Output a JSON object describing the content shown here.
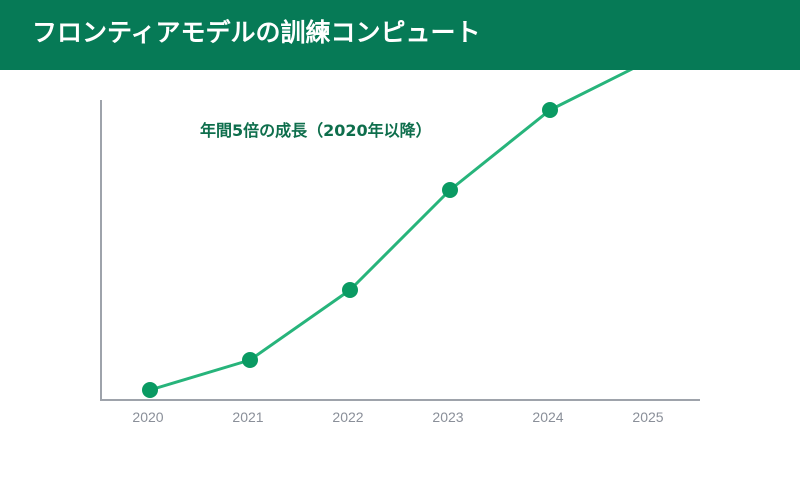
{
  "header": {
    "title": "フロンティアモデルの訓練コンピュート"
  },
  "colors": {
    "header_bg": "#067a56",
    "line": "#27b47b",
    "point": "#0a9a63",
    "axis": "#9ea3ab"
  },
  "chart_data": {
    "type": "line",
    "title": "",
    "xlabel": "",
    "ylabel": "",
    "annotation": "年間5倍の成長（2020年以降）",
    "categories": [
      "2020",
      "2021",
      "2022",
      "2023",
      "2024",
      "2025"
    ],
    "series": [
      {
        "values": [
          1,
          4,
          11,
          21,
          29,
          34
        ]
      }
    ],
    "ylim": [
      0,
      30
    ],
    "grid": false,
    "legend": "none"
  }
}
